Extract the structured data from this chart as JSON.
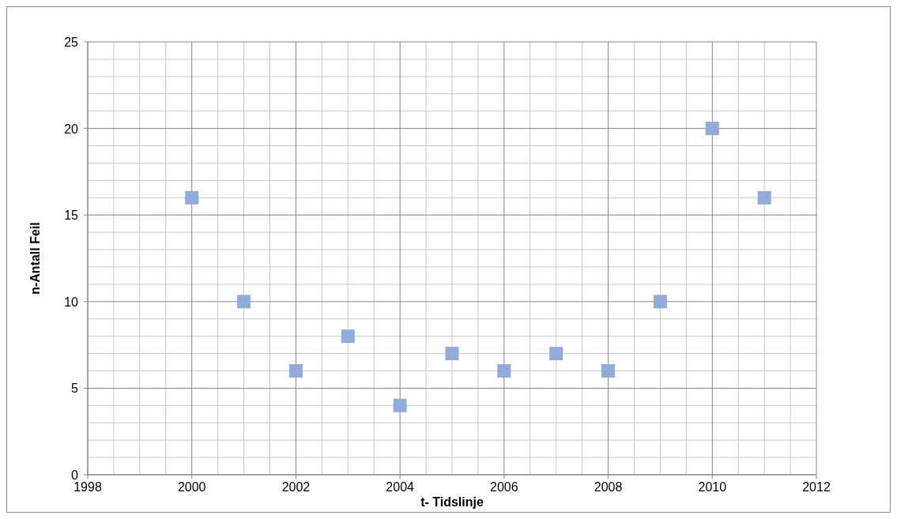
{
  "chart_data": {
    "type": "scatter",
    "xlabel": "t- Tidslinje",
    "ylabel": "n-Antall Feil",
    "x": [
      2000,
      2001,
      2002,
      2003,
      2004,
      2005,
      2006,
      2007,
      2008,
      2009,
      2010,
      2011
    ],
    "series": [
      {
        "color": "#92abd8",
        "values": [
          16,
          10,
          6,
          8,
          4,
          7,
          6,
          7,
          6,
          10,
          20,
          16
        ]
      }
    ],
    "xlim": [
      1998,
      2012
    ],
    "xticks": [
      1998,
      2000,
      2002,
      2004,
      2006,
      2008,
      2010,
      2012
    ],
    "ylim": [
      0,
      25
    ],
    "yticks": [
      0,
      5,
      10,
      15,
      20,
      25
    ],
    "grid": true,
    "marker": "square"
  }
}
